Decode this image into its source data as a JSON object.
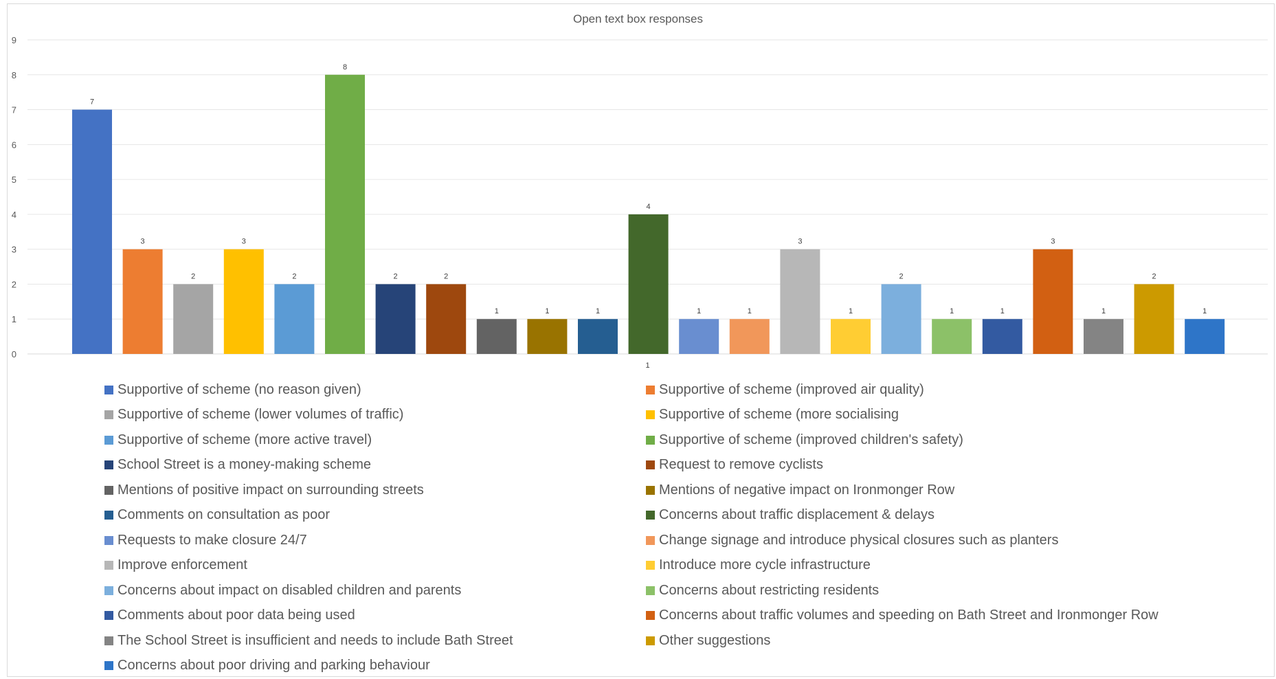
{
  "chart_data": {
    "type": "bar",
    "title": "Open text box responses",
    "xlabel": "",
    "ylabel": "",
    "ylim": [
      0,
      9
    ],
    "yticks": [
      0,
      1,
      2,
      3,
      4,
      5,
      6,
      7,
      8,
      9
    ],
    "x_tick_labels": [
      "1"
    ],
    "grid": true,
    "legend_position": "bottom",
    "series": [
      {
        "name": "Supportive of scheme (no reason given)",
        "value": 7,
        "color": "#4472C4"
      },
      {
        "name": "Supportive of scheme (improved air quality)",
        "value": 3,
        "color": "#ED7D31"
      },
      {
        "name": "Supportive of scheme (lower volumes of traffic)",
        "value": 2,
        "color": "#A5A5A5"
      },
      {
        "name": "Supportive of scheme (more socialising",
        "value": 3,
        "color": "#FFC000"
      },
      {
        "name": "Supportive of scheme (more active travel)",
        "value": 2,
        "color": "#5B9BD5"
      },
      {
        "name": "Supportive of scheme (improved children's safety)",
        "value": 8,
        "color": "#70AD47"
      },
      {
        "name": "School Street is a money-making scheme",
        "value": 2,
        "color": "#264478"
      },
      {
        "name": "Request to remove cyclists",
        "value": 2,
        "color": "#9E480E"
      },
      {
        "name": "Mentions of positive impact on surrounding streets",
        "value": 1,
        "color": "#636363"
      },
      {
        "name": "Mentions of negative impact on Ironmonger Row",
        "value": 1,
        "color": "#997300"
      },
      {
        "name": "Comments on consultation as poor",
        "value": 1,
        "color": "#255E91"
      },
      {
        "name": "Concerns about traffic displacement & delays",
        "value": 4,
        "color": "#43682B"
      },
      {
        "name": "Requests to make closure 24/7",
        "value": 1,
        "color": "#698ED0"
      },
      {
        "name": "Change signage and introduce physical closures such as planters",
        "value": 1,
        "color": "#F1975A"
      },
      {
        "name": "Improve enforcement",
        "value": 3,
        "color": "#B7B7B7"
      },
      {
        "name": "Introduce more cycle infrastructure",
        "value": 1,
        "color": "#FFCD33"
      },
      {
        "name": "Concerns about impact on disabled children and parents",
        "value": 2,
        "color": "#7CAFDD"
      },
      {
        "name": "Concerns about restricting residents",
        "value": 1,
        "color": "#8CC168"
      },
      {
        "name": "Comments about poor data being used",
        "value": 1,
        "color": "#335AA1"
      },
      {
        "name": "Concerns about traffic volumes and speeding on Bath Street and Ironmonger Row",
        "value": 3,
        "color": "#D26012"
      },
      {
        "name": "The School Street is insufficient and needs to include Bath Street",
        "value": 1,
        "color": "#848484"
      },
      {
        "name": "Other suggestions",
        "value": 2,
        "color": "#CC9A00"
      },
      {
        "name": "Concerns about poor driving and parking behaviour",
        "value": 1,
        "color": "#2E75C8"
      }
    ]
  }
}
